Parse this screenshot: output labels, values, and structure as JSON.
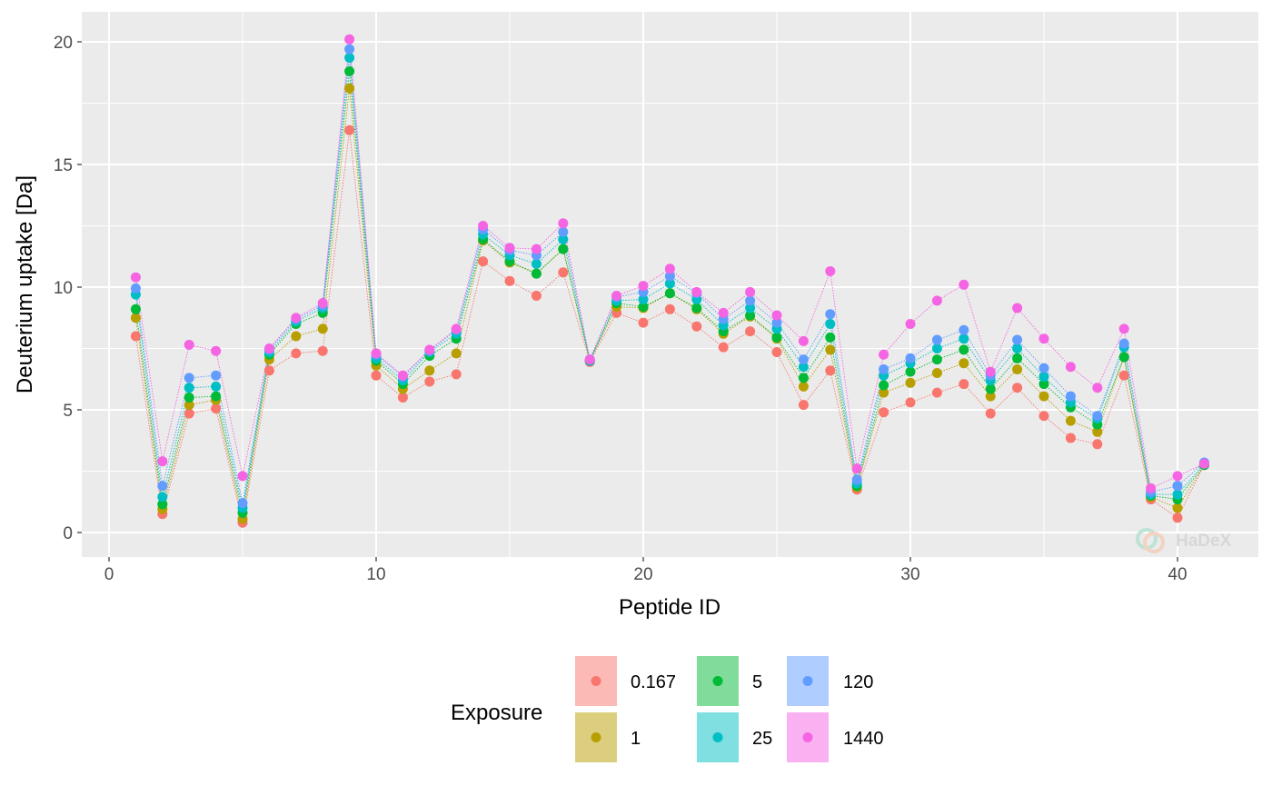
{
  "chart_data": {
    "type": "scatter",
    "xlabel": "Peptide ID",
    "ylabel": "Deuterium uptake [Da]",
    "xlim": [
      -1,
      42
    ],
    "ylim": [
      -1,
      21
    ],
    "xticks": [
      0,
      10,
      20,
      30,
      40
    ],
    "yticks": [
      0,
      5,
      10,
      15,
      20
    ],
    "grid": true,
    "lines": "dotted connecting lines per series",
    "legend": {
      "title": "Exposure",
      "position": "bottom"
    },
    "x": [
      1,
      2,
      3,
      4,
      5,
      6,
      7,
      8,
      9,
      10,
      11,
      12,
      13,
      14,
      15,
      16,
      17,
      18,
      19,
      20,
      21,
      22,
      23,
      24,
      25,
      26,
      27,
      28,
      29,
      30,
      31,
      32,
      33,
      34,
      35,
      36,
      37,
      38,
      39,
      40,
      41
    ],
    "series": [
      {
        "name": "0.167",
        "color": "#F8766D",
        "values": [
          8.0,
          0.75,
          4.85,
          5.05,
          0.4,
          6.6,
          7.3,
          7.4,
          16.4,
          6.4,
          5.5,
          6.15,
          6.45,
          11.05,
          10.25,
          9.65,
          10.6,
          6.95,
          8.95,
          8.55,
          9.1,
          8.4,
          7.55,
          8.2,
          7.35,
          5.2,
          6.6,
          1.75,
          4.9,
          5.3,
          5.7,
          6.05,
          4.85,
          5.9,
          4.75,
          3.85,
          3.6,
          6.4,
          1.35,
          0.6,
          2.75
        ]
      },
      {
        "name": "1",
        "color": "#B79F00",
        "values": [
          8.75,
          0.95,
          5.2,
          5.4,
          0.55,
          7.05,
          8.0,
          8.3,
          18.1,
          6.8,
          5.85,
          6.6,
          7.3,
          11.9,
          11.0,
          10.55,
          11.55,
          7.0,
          9.2,
          9.15,
          9.75,
          9.1,
          8.1,
          8.8,
          7.9,
          5.95,
          7.45,
          1.85,
          5.7,
          6.1,
          6.5,
          6.9,
          5.55,
          6.65,
          5.55,
          4.55,
          4.1,
          7.15,
          1.45,
          1.0,
          2.75
        ]
      },
      {
        "name": "5",
        "color": "#00BA38",
        "values": [
          9.1,
          1.15,
          5.5,
          5.55,
          0.8,
          7.25,
          8.5,
          8.95,
          18.8,
          7.0,
          6.05,
          7.2,
          7.9,
          11.95,
          11.05,
          10.55,
          11.55,
          7.0,
          9.35,
          9.2,
          9.75,
          9.15,
          8.2,
          8.85,
          7.95,
          6.3,
          7.95,
          1.9,
          6.0,
          6.55,
          7.05,
          7.45,
          5.85,
          7.1,
          6.05,
          5.1,
          4.4,
          7.15,
          1.5,
          1.35,
          2.75
        ]
      },
      {
        "name": "25",
        "color": "#00BFC4",
        "values": [
          9.7,
          1.45,
          5.9,
          5.95,
          1.0,
          7.35,
          8.6,
          9.15,
          19.35,
          7.1,
          6.2,
          7.35,
          8.1,
          12.15,
          11.3,
          10.95,
          11.95,
          7.0,
          9.45,
          9.5,
          10.15,
          9.5,
          8.45,
          9.15,
          8.3,
          6.75,
          8.5,
          2.0,
          6.4,
          6.9,
          7.5,
          7.9,
          6.2,
          7.5,
          6.35,
          5.3,
          4.65,
          7.55,
          1.55,
          1.55,
          2.8
        ]
      },
      {
        "name": "120",
        "color": "#619CFF",
        "values": [
          9.95,
          1.9,
          6.3,
          6.4,
          1.2,
          7.45,
          8.7,
          9.25,
          19.7,
          7.25,
          6.35,
          7.4,
          8.25,
          12.35,
          11.5,
          11.3,
          12.25,
          7.05,
          9.6,
          9.8,
          10.45,
          9.75,
          8.7,
          9.45,
          8.55,
          7.05,
          8.9,
          2.15,
          6.65,
          7.1,
          7.85,
          8.25,
          6.4,
          7.85,
          6.7,
          5.55,
          4.75,
          7.7,
          1.65,
          1.9,
          2.85
        ]
      },
      {
        "name": "1440",
        "color": "#F564E3",
        "values": [
          10.4,
          2.9,
          7.65,
          7.4,
          2.3,
          7.5,
          8.75,
          9.35,
          20.1,
          7.3,
          6.4,
          7.45,
          8.3,
          12.5,
          11.6,
          11.55,
          12.6,
          7.05,
          9.65,
          10.05,
          10.75,
          9.8,
          8.95,
          9.8,
          8.85,
          7.8,
          10.65,
          2.6,
          7.25,
          8.5,
          9.45,
          10.1,
          6.55,
          9.15,
          7.9,
          6.75,
          5.9,
          8.3,
          1.8,
          2.3,
          2.8
        ]
      }
    ]
  },
  "watermark": {
    "text": "HaDeX"
  }
}
